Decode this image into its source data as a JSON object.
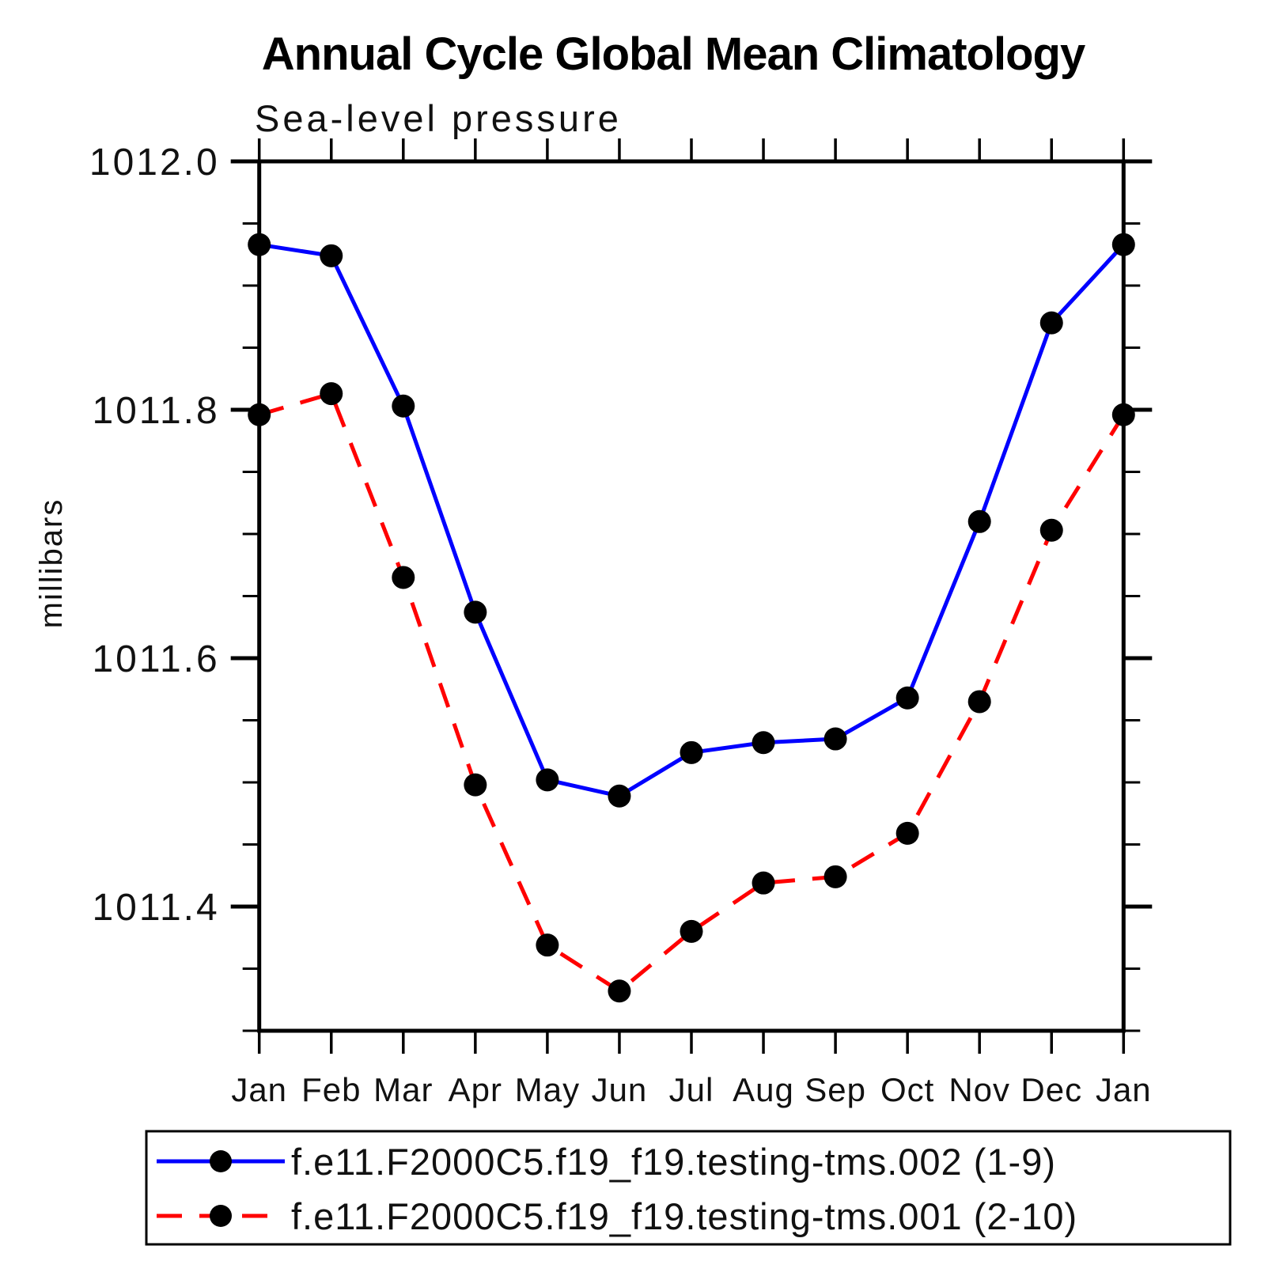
{
  "title": "Annual Cycle Global Mean Climatology",
  "subtitle": "Sea-level pressure",
  "y_axis_label": "millibars",
  "chart_data": {
    "type": "line",
    "x": [
      "Jan",
      "Feb",
      "Mar",
      "Apr",
      "May",
      "Jun",
      "Jul",
      "Aug",
      "Sep",
      "Oct",
      "Nov",
      "Dec",
      "Jan"
    ],
    "xlabel": "",
    "ylabel": "millibars",
    "ylim": [
      1011.3,
      1012.0
    ],
    "yticks_major": [
      1011.4,
      1011.6,
      1011.8,
      1012.0
    ],
    "ytick_minor_step": 0.05,
    "grid": false,
    "legend_position": "bottom-box",
    "series": [
      {
        "name": "f.e11.F2000C5.f19_f19.testing-tms.002 (1-9)",
        "color": "#0000ff",
        "line_style": "solid",
        "marker": "filled-circle",
        "marker_color": "#000000",
        "values": [
          1011.933,
          1011.924,
          1011.803,
          1011.637,
          1011.502,
          1011.489,
          1011.524,
          1011.532,
          1011.535,
          1011.568,
          1011.71,
          1011.87,
          1011.933
        ]
      },
      {
        "name": "f.e11.F2000C5.f19_f19.testing-tms.001 (2-10)",
        "color": "#ff0000",
        "line_style": "dashed",
        "marker": "filled-circle",
        "marker_color": "#000000",
        "values": [
          1011.796,
          1011.813,
          1011.665,
          1011.498,
          1011.369,
          1011.332,
          1011.38,
          1011.419,
          1011.424,
          1011.459,
          1011.565,
          1011.703,
          1011.796
        ]
      }
    ]
  },
  "colors": {
    "background": "#ffffff",
    "axis": "#000000",
    "text": "#000000"
  }
}
